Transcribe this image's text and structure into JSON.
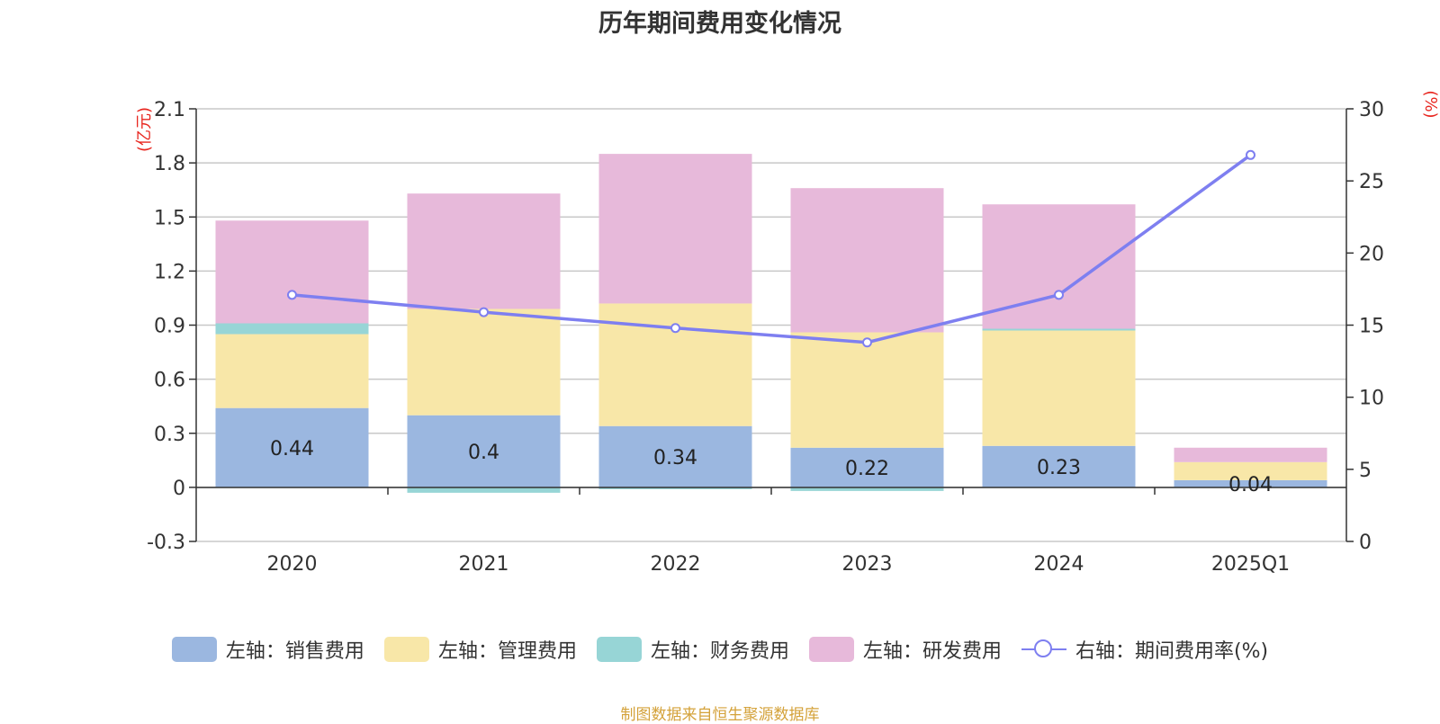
{
  "chart_data": {
    "type": "bar",
    "stacked": true,
    "title": "历年期间费用变化情况",
    "categories": [
      "2020",
      "2021",
      "2022",
      "2023",
      "2024",
      "2025Q1"
    ],
    "left_axis": {
      "unit": "(亿元)",
      "ticks": [
        "2.1",
        "1.8",
        "1.5",
        "1.2",
        "0.9",
        "0.6",
        "0.3",
        "0",
        "-0.3"
      ],
      "min": -0.3,
      "max": 2.1
    },
    "right_axis": {
      "unit": "(%)",
      "ticks": [
        "30",
        "25",
        "20",
        "15",
        "10",
        "5",
        "0"
      ],
      "min": 0,
      "max": 30
    },
    "series": [
      {
        "name": "左轴：销售费用",
        "color": "#9bb7e0",
        "values": [
          0.44,
          0.4,
          0.34,
          0.22,
          0.23,
          0.04
        ],
        "labels": [
          "0.44",
          "0.4",
          "0.34",
          "0.22",
          "0.23",
          "0.04"
        ]
      },
      {
        "name": "左轴：管理费用",
        "color": "#f8e7a8",
        "values": [
          0.41,
          0.59,
          0.68,
          0.64,
          0.64,
          0.1
        ]
      },
      {
        "name": "左轴：财务费用",
        "color": "#97d5d6",
        "values": [
          0.06,
          -0.03,
          -0.01,
          -0.02,
          0.01,
          0.0
        ]
      },
      {
        "name": "左轴：研发费用",
        "color": "#e7b9da",
        "values": [
          0.57,
          0.64,
          0.83,
          0.8,
          0.69,
          0.08
        ]
      }
    ],
    "line": {
      "name": "右轴：期间费用率(%)",
      "color": "#7e7ff0",
      "values": [
        17.1,
        15.9,
        14.8,
        13.8,
        17.1,
        26.8
      ]
    }
  },
  "source": "制图数据来自恒生聚源数据库"
}
